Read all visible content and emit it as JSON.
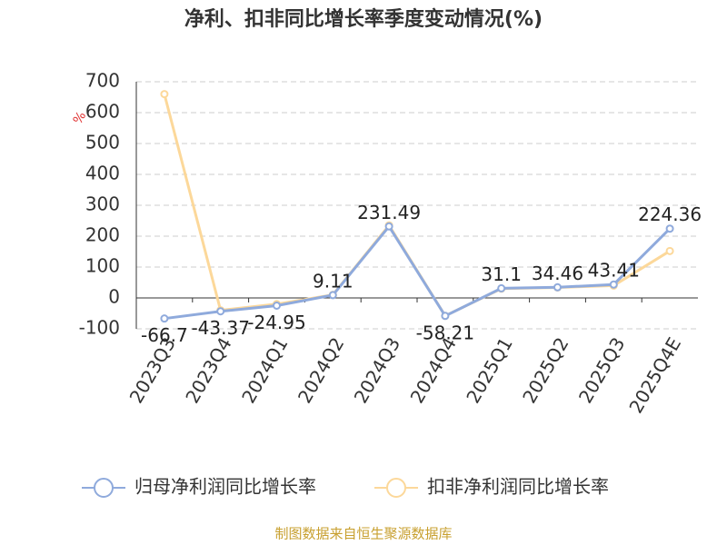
{
  "chart_data": {
    "type": "line",
    "title": "净利、扣非同比增长率季度变动情况(%)",
    "y_label": "%",
    "categories": [
      "2023Q3",
      "2023Q4",
      "2024Q1",
      "2024Q2",
      "2024Q3",
      "2024Q4",
      "2025Q1",
      "2025Q2",
      "2025Q3",
      "2025Q4E"
    ],
    "series": [
      {
        "name": "归母净利润同比增长率",
        "color": "#8faadc",
        "values": [
          -66.7,
          -43.37,
          -24.95,
          9.11,
          231.49,
          -58.21,
          31.1,
          34.46,
          43.41,
          224.36
        ]
      },
      {
        "name": "扣非净利润同比增长率",
        "color": "#fcd89a",
        "values": [
          660,
          -40,
          -20,
          10,
          235,
          -58,
          30,
          34,
          40,
          152
        ]
      }
    ],
    "ylim": [
      -100,
      700
    ],
    "yticks": [
      -100,
      0,
      100,
      200,
      300,
      400,
      500,
      600,
      700
    ],
    "grid": true,
    "source": "制图数据来自恒生聚源数据库"
  }
}
